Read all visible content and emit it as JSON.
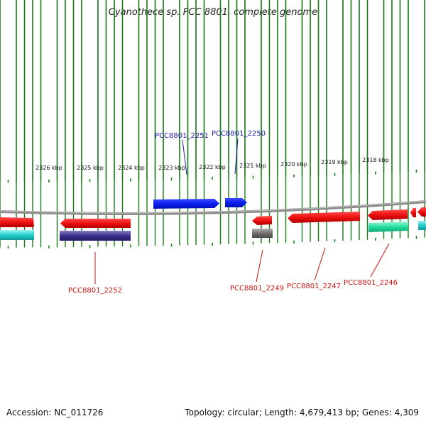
{
  "title": "Cyanothece sp. PCC 8801, complete genome",
  "colors": {
    "backbone": "#8a8a8a",
    "tick": "#1a7a1a",
    "forward_gene": "#0a1ef0",
    "reverse_gene": "#ee1111",
    "forward_label": "#1a1aaa",
    "reverse_label": "#cc1111"
  },
  "scale_ticks": [
    {
      "label": "2326 kbp"
    },
    {
      "label": "2325 kbp"
    },
    {
      "label": "2324 kbp"
    },
    {
      "label": "2323 kbp"
    },
    {
      "label": "2322 kbp"
    },
    {
      "label": "2321 kbp"
    },
    {
      "label": "2320 kbp"
    },
    {
      "label": "2319 kbp"
    },
    {
      "label": "2318 kbp"
    }
  ],
  "gene_labels": [
    {
      "name": "PCC8801_2251",
      "strand": "forward"
    },
    {
      "name": "PCC8801_2250",
      "strand": "forward"
    },
    {
      "name": "PCC8801_2252",
      "strand": "reverse"
    },
    {
      "name": "PCC8801_2249",
      "strand": "reverse"
    },
    {
      "name": "PCC8801_2247",
      "strand": "reverse"
    },
    {
      "name": "PCC8801_2246",
      "strand": "reverse"
    }
  ],
  "footer": {
    "accession": "Accession: NC_011726",
    "summary": "Topology: circular; Length: 4,679,413 bp; Genes: 4,309"
  }
}
